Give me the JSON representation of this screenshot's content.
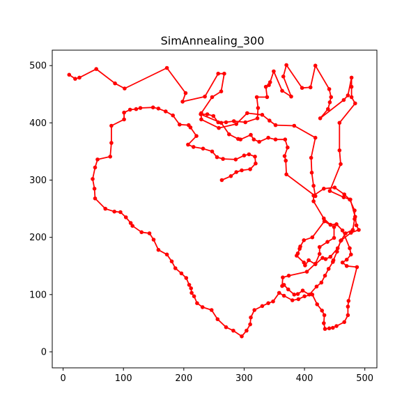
{
  "chart_data": {
    "type": "line",
    "title": "SimAnnealing_300",
    "xlabel": "",
    "ylabel": "",
    "xlim": [
      -18,
      520
    ],
    "ylim": [
      -28,
      527
    ],
    "xticks": [
      0,
      100,
      200,
      300,
      400,
      500
    ],
    "yticks": [
      0,
      100,
      200,
      300,
      400,
      500
    ],
    "grid": false,
    "legend": "none",
    "series": [
      {
        "color": "#ff0000",
        "marker": "circle",
        "closed": false,
        "points": [
          [
            10,
            484
          ],
          [
            20,
            477
          ],
          [
            27,
            479
          ],
          [
            55,
            494
          ],
          [
            86,
            469
          ],
          [
            102,
            460
          ],
          [
            172,
            496
          ],
          [
            203,
            452
          ],
          [
            198,
            437
          ],
          [
            235,
            446
          ],
          [
            257,
            486
          ],
          [
            267,
            486
          ],
          [
            262,
            455
          ],
          [
            247,
            445
          ],
          [
            229,
            417
          ],
          [
            229,
            406
          ],
          [
            258,
            391
          ],
          [
            287,
            398
          ],
          [
            305,
            417
          ],
          [
            330,
            414
          ],
          [
            342,
            404
          ],
          [
            352,
            396
          ],
          [
            383,
            395
          ],
          [
            418,
            374
          ],
          [
            411,
            339
          ],
          [
            412,
            313
          ],
          [
            415,
            290
          ],
          [
            418,
            272
          ],
          [
            370,
            310
          ],
          [
            369,
            334
          ],
          [
            367,
            342
          ],
          [
            372,
            357
          ],
          [
            368,
            371
          ],
          [
            352,
            371
          ],
          [
            340,
            374
          ],
          [
            325,
            367
          ],
          [
            316,
            371
          ],
          [
            311,
            379
          ],
          [
            294,
            371
          ],
          [
            290,
            372
          ],
          [
            275,
            380
          ],
          [
            262,
            400
          ],
          [
            228,
            415
          ],
          [
            239,
            415
          ],
          [
            249,
            412
          ],
          [
            257,
            401
          ],
          [
            270,
            401
          ],
          [
            283,
            403
          ],
          [
            302,
            401
          ],
          [
            322,
            408
          ],
          [
            323,
            426
          ],
          [
            321,
            445
          ],
          [
            338,
            445
          ],
          [
            336,
            463
          ],
          [
            341,
            466
          ],
          [
            343,
            471
          ],
          [
            349,
            490
          ],
          [
            363,
            456
          ],
          [
            378,
            446
          ],
          [
            365,
            481
          ],
          [
            370,
            501
          ],
          [
            396,
            461
          ],
          [
            410,
            462
          ],
          [
            418,
            500
          ],
          [
            441,
            459
          ],
          [
            444,
            445
          ],
          [
            442,
            436
          ],
          [
            439,
            424
          ],
          [
            426,
            408
          ],
          [
            465,
            440
          ],
          [
            472,
            448
          ],
          [
            478,
            479
          ],
          [
            478,
            463
          ],
          [
            478,
            445
          ],
          [
            484,
            434
          ],
          [
            458,
            400
          ],
          [
            458,
            352
          ],
          [
            460,
            328
          ],
          [
            442,
            281
          ],
          [
            465,
            270
          ],
          [
            476,
            266
          ],
          [
            484,
            236
          ],
          [
            486,
            221
          ],
          [
            490,
            213
          ],
          [
            477,
            208
          ],
          [
            460,
            194
          ],
          [
            454,
            175
          ],
          [
            448,
            160
          ],
          [
            447,
            157
          ],
          [
            440,
            145
          ],
          [
            434,
            133
          ],
          [
            428,
            121
          ],
          [
            420,
            114
          ],
          [
            408,
            100
          ],
          [
            397,
            107
          ],
          [
            389,
            101
          ],
          [
            383,
            100
          ],
          [
            373,
            109
          ],
          [
            366,
            117
          ],
          [
            363,
            115
          ],
          [
            364,
            130
          ],
          [
            374,
            133
          ],
          [
            404,
            140
          ],
          [
            418,
            154
          ],
          [
            425,
            171
          ],
          [
            425,
            183
          ],
          [
            438,
            192
          ],
          [
            449,
            199
          ],
          [
            449,
            218
          ],
          [
            433,
            228
          ],
          [
            413,
            200
          ],
          [
            399,
            195
          ],
          [
            393,
            184
          ],
          [
            392,
            180
          ],
          [
            389,
            172
          ],
          [
            387,
            168
          ],
          [
            399,
            156
          ],
          [
            401,
            151
          ],
          [
            407,
            160
          ],
          [
            418,
            153
          ],
          [
            430,
            164
          ],
          [
            435,
            162
          ],
          [
            443,
            166
          ],
          [
            455,
            181
          ],
          [
            461,
            195
          ],
          [
            468,
            207
          ],
          [
            480,
            213
          ],
          [
            483,
            232
          ],
          [
            483,
            247
          ],
          [
            475,
            266
          ],
          [
            466,
            275
          ],
          [
            450,
            287
          ],
          [
            432,
            285
          ],
          [
            415,
            273
          ],
          [
            415,
            263
          ],
          [
            432,
            233
          ],
          [
            443,
            222
          ],
          [
            453,
            223
          ],
          [
            463,
            212
          ],
          [
            475,
            181
          ],
          [
            477,
            170
          ],
          [
            470,
            161
          ],
          [
            463,
            156
          ],
          [
            470,
            150
          ],
          [
            487,
            148
          ],
          [
            473,
            89
          ],
          [
            472,
            79
          ],
          [
            472,
            64
          ],
          [
            466,
            52
          ],
          [
            453,
            45
          ],
          [
            447,
            42
          ],
          [
            441,
            41
          ],
          [
            434,
            40
          ],
          [
            432,
            50
          ],
          [
            433,
            64
          ],
          [
            429,
            72
          ],
          [
            421,
            83
          ],
          [
            413,
            100
          ],
          [
            400,
            97
          ],
          [
            390,
            92
          ],
          [
            380,
            90
          ],
          [
            366,
            98
          ],
          [
            358,
            103
          ],
          [
            348,
            88
          ],
          [
            340,
            85
          ],
          [
            330,
            80
          ],
          [
            317,
            73
          ],
          [
            311,
            60
          ],
          [
            310,
            48
          ],
          [
            304,
            37
          ],
          [
            296,
            27
          ],
          [
            282,
            37
          ],
          [
            270,
            43
          ],
          [
            256,
            57
          ],
          [
            246,
            73
          ],
          [
            231,
            78
          ],
          [
            222,
            85
          ],
          [
            217,
            97
          ],
          [
            213,
            103
          ],
          [
            212,
            111
          ],
          [
            209,
            117
          ],
          [
            204,
            129
          ],
          [
            196,
            137
          ],
          [
            186,
            146
          ],
          [
            180,
            158
          ],
          [
            172,
            170
          ],
          [
            158,
            178
          ],
          [
            150,
            196
          ],
          [
            143,
            207
          ],
          [
            130,
            209
          ],
          [
            115,
            220
          ],
          [
            112,
            225
          ],
          [
            104,
            235
          ],
          [
            95,
            244
          ],
          [
            85,
            245
          ],
          [
            70,
            250
          ],
          [
            53,
            268
          ],
          [
            52,
            285
          ],
          [
            49,
            302
          ],
          [
            53,
            322
          ],
          [
            57,
            336
          ],
          [
            78,
            341
          ],
          [
            80,
            365
          ],
          [
            80,
            395
          ],
          [
            101,
            406
          ],
          [
            101,
            418
          ],
          [
            111,
            423
          ],
          [
            121,
            424
          ],
          [
            128,
            426
          ],
          [
            149,
            427
          ],
          [
            158,
            425
          ],
          [
            170,
            420
          ],
          [
            182,
            413
          ],
          [
            193,
            397
          ],
          [
            208,
            396
          ],
          [
            211,
            392
          ],
          [
            221,
            377
          ],
          [
            207,
            362
          ],
          [
            216,
            358
          ],
          [
            232,
            355
          ],
          [
            247,
            350
          ],
          [
            255,
            340
          ],
          [
            265,
            337
          ],
          [
            286,
            336
          ],
          [
            300,
            343
          ],
          [
            308,
            345
          ],
          [
            318,
            341
          ],
          [
            319,
            329
          ],
          [
            310,
            319
          ],
          [
            296,
            317
          ],
          [
            287,
            314
          ],
          [
            278,
            307
          ],
          [
            263,
            300
          ]
        ]
      }
    ]
  }
}
